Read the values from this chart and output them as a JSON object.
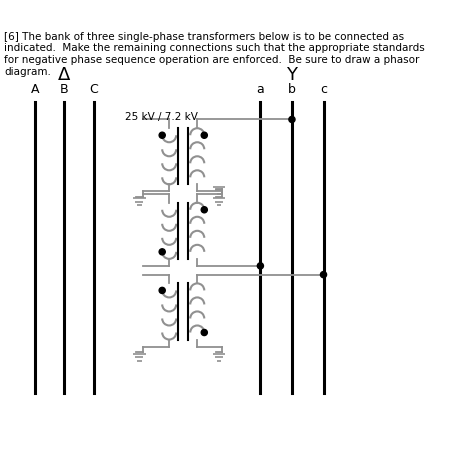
{
  "title_text": "[6] The bank of three single-phase transformers below is to be connected as\nindicated.  Make the remaining connections such that the appropriate standards\nfor negative phase sequence operation are enforced.  Be sure to draw a phasor\ndiagram.",
  "bg_color": "#ffffff",
  "line_color": "#000000",
  "gray_color": "#909090",
  "delta_label": "Δ",
  "y_label": "Y",
  "phase_labels_left": [
    "A",
    "B",
    "C"
  ],
  "phase_labels_right": [
    "a",
    "b",
    "c"
  ],
  "voltage_label": "25 kV / 7.2 kV",
  "figsize": [
    4.74,
    4.73
  ],
  "dpi": 100
}
